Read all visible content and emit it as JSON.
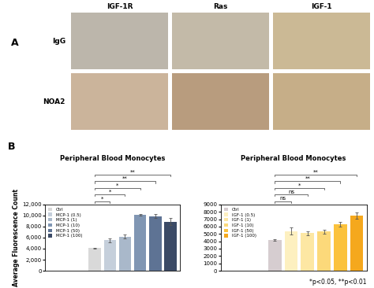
{
  "panel_a": {
    "label": "A",
    "columns": [
      "IGF-1R",
      "Ras",
      "IGF-1"
    ],
    "rows": [
      "IgG",
      "NOA2"
    ]
  },
  "panel_b_label": "B",
  "footnote": "*p<0.05, **p<0.01",
  "chart_data": [
    {
      "type": "bar",
      "title": "Peripheral Blood Monocytes",
      "y_label": "Average Fluorescence Count",
      "categories": [
        "Ctrl",
        "MCP-1 (0.5)",
        "MCP-1 (1)",
        "MCP-1 (10)",
        "MCP-1 (50)",
        "MCP-1 (100)"
      ],
      "values": [
        4100,
        5500,
        6200,
        10100,
        9900,
        8900
      ],
      "errors": [
        100,
        300,
        400,
        150,
        300,
        600
      ],
      "significance": [
        null,
        "*",
        "*",
        "*",
        "**",
        "**"
      ],
      "colors": [
        "#d9d9d9",
        "#c5cfdb",
        "#a9b8ca",
        "#8096b3",
        "#5e7394",
        "#3b4a66"
      ],
      "ylim": [
        0,
        12000
      ],
      "yticks": [
        0,
        {
          "value": 2000,
          "label": "2,000"
        },
        {
          "value": 4000,
          "label": "4,000"
        },
        {
          "value": 6000,
          "label": "6,000"
        },
        {
          "value": 8000,
          "label": "8,000"
        },
        {
          "value": 10000,
          "label": "10,000"
        },
        {
          "value": 12000,
          "label": "12,000"
        }
      ],
      "legend": "upper left",
      "tick_labels": "y",
      "grid": false
    },
    {
      "type": "bar",
      "title": "Peripheral Blood Monocytes",
      "categories": [
        "Ctrl",
        "IGF-1 (0.5)",
        "IGF-1 (1)",
        "IGF-1 (10)",
        "IGF-1 (50)",
        "IGF-1 (100)"
      ],
      "values": [
        4150,
        5400,
        5100,
        5300,
        6300,
        7500
      ],
      "errors": [
        80,
        500,
        300,
        250,
        350,
        400
      ],
      "significance": [
        null,
        "ns",
        "ns",
        "*",
        "**",
        "**"
      ],
      "colors": [
        "#d6cdd0",
        "#fdf0c0",
        "#fde7a3",
        "#fcd97a",
        "#fbc23c",
        "#f5a81d"
      ],
      "ylim": [
        0,
        9000
      ],
      "yticks": [
        0,
        1000,
        2000,
        3000,
        4000,
        5000,
        6000,
        7000,
        8000,
        9000
      ],
      "legend": "upper left",
      "tick_labels": "y",
      "grid": false
    }
  ]
}
